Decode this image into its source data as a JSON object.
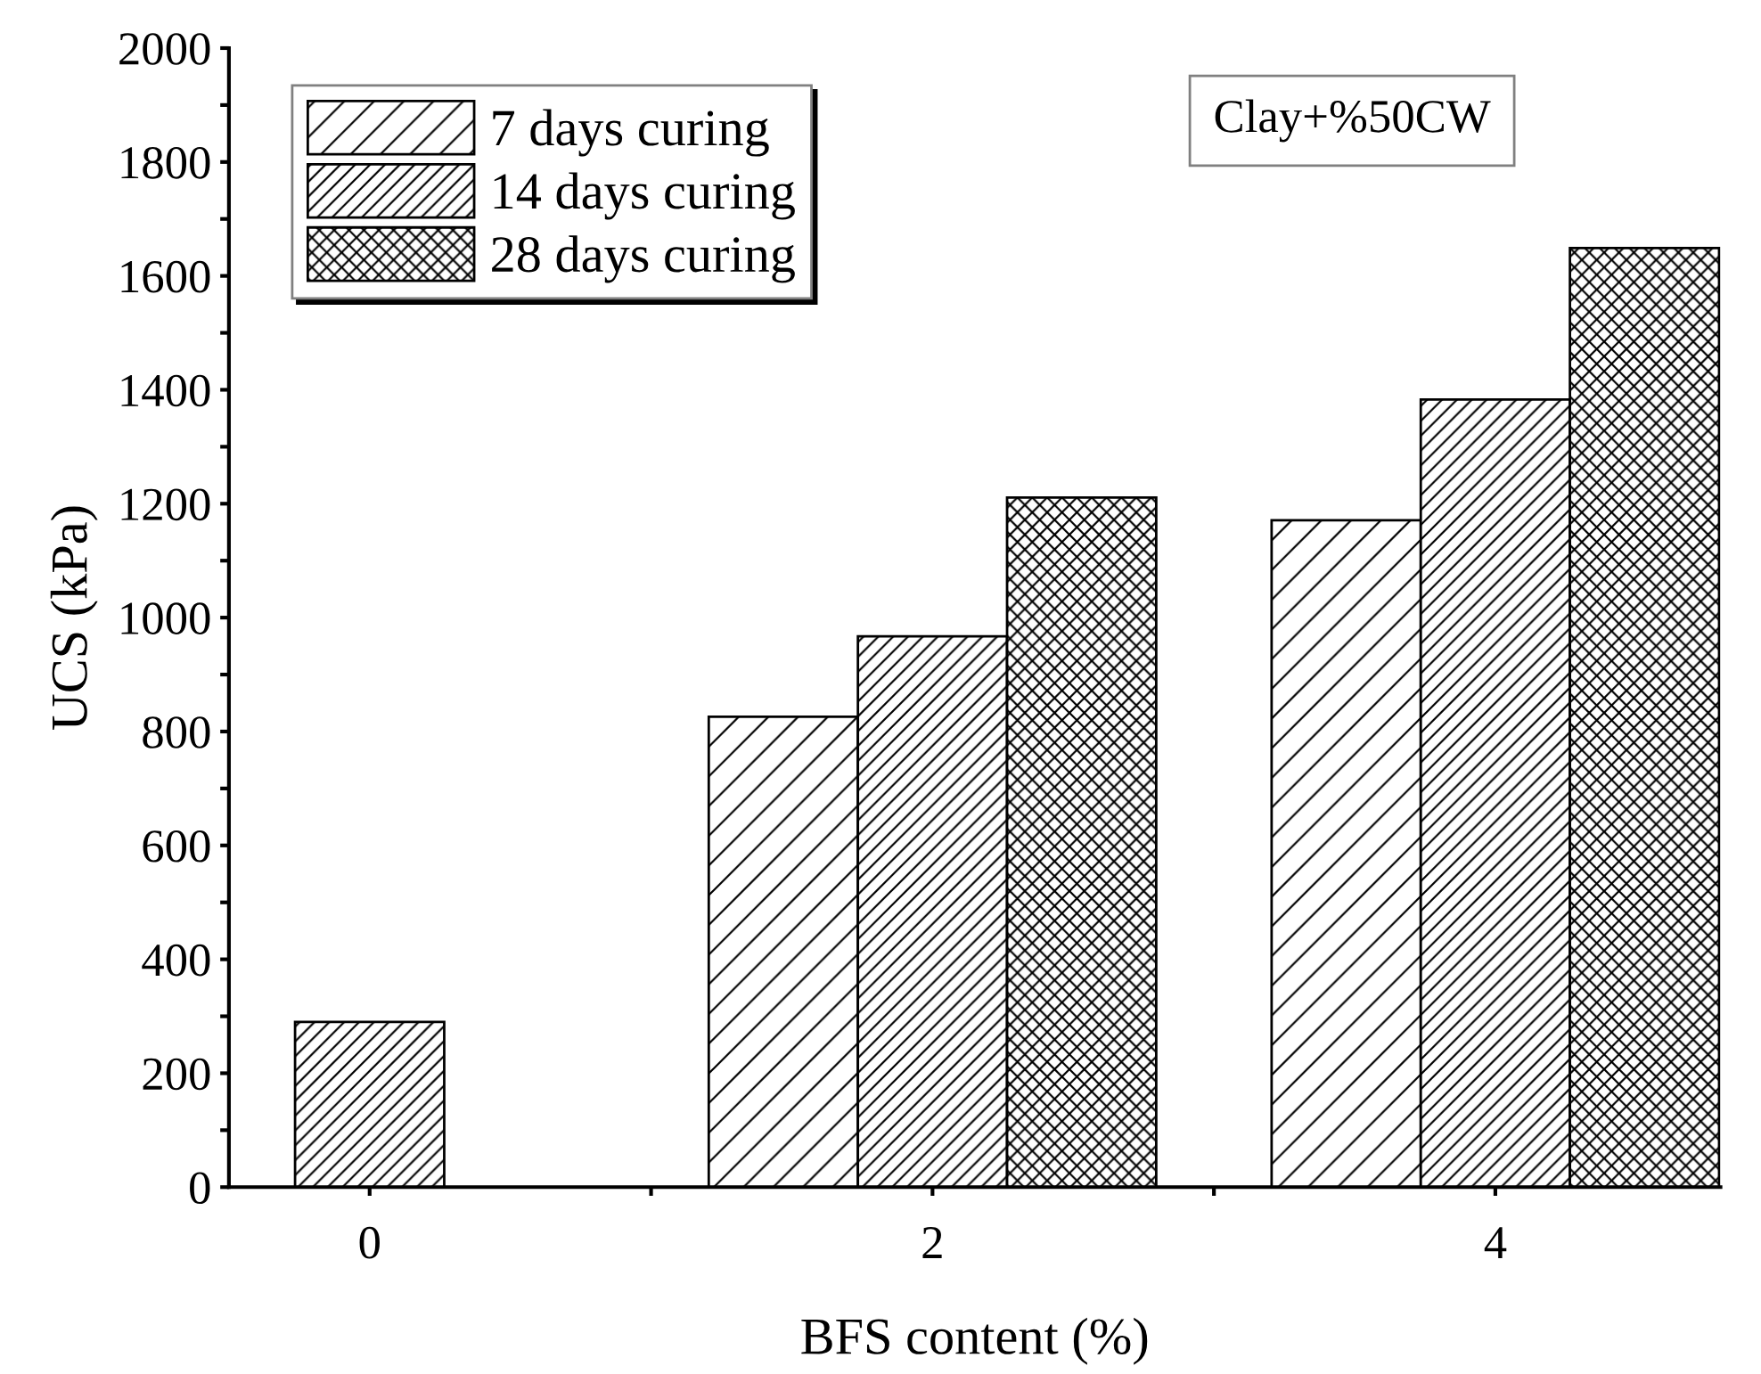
{
  "chart_data": {
    "type": "bar",
    "xlabel": "BFS content (%)",
    "ylabel": "UCS (kPa)",
    "annotations": [
      "Clay+%50CW"
    ],
    "x": [
      0,
      2,
      4
    ],
    "series": [
      {
        "name": "7 days curing",
        "color": "#000000",
        "values": [
          null,
          826,
          1171
        ]
      },
      {
        "name": "14 days curing",
        "color": "#000000",
        "values": [
          290,
          967,
          1383
        ]
      },
      {
        "name": "28 days curing",
        "color": "#000000",
        "values": [
          null,
          1211,
          1649
        ]
      }
    ],
    "xlim": [
      -0.5,
      4.8
    ],
    "xticks": [
      0,
      {
        "value": 1,
        "label": null
      },
      2,
      {
        "value": 3,
        "label": null
      },
      4
    ],
    "ylim": [
      0,
      2000
    ],
    "yticks": [
      0,
      {
        "value": 100,
        "label": null
      },
      200,
      {
        "value": 300,
        "label": null
      },
      400,
      {
        "value": 500,
        "label": null
      },
      600,
      {
        "value": 700,
        "label": null
      },
      800,
      {
        "value": 900,
        "label": null
      },
      1000,
      {
        "value": 1100,
        "label": null
      },
      1200,
      {
        "value": 1300,
        "label": null
      },
      1400,
      {
        "value": 1500,
        "label": null
      },
      1600,
      {
        "value": 1700,
        "label": null
      },
      1800,
      {
        "value": 1900,
        "label": null
      },
      2000
    ],
    "grid": false,
    "legend": "top left"
  }
}
